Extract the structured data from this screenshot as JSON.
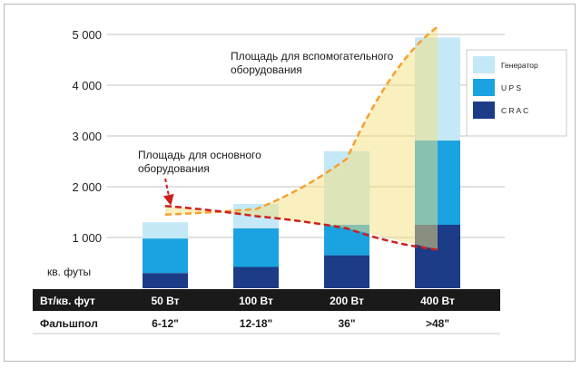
{
  "chart_data": {
    "type": "bar",
    "stacked": true,
    "ylim": [
      0,
      5000
    ],
    "yticks": [
      1000,
      2000,
      3000,
      4000,
      5000
    ],
    "ytick_labels": [
      "1 000",
      "2 000",
      "3 000",
      "4 000",
      "5 000"
    ],
    "ylabel": "кв. футы",
    "categories": [
      "50 Вт",
      "100 Вт",
      "200 Вт",
      "400 Вт"
    ],
    "series": [
      {
        "name": "C R A C",
        "color": "#1c3c88",
        "values": [
          300,
          420,
          650,
          1250
        ]
      },
      {
        "name": "U P S",
        "color": "#1aa3e0",
        "values": [
          680,
          760,
          600,
          1660
        ]
      },
      {
        "name": "Генератор",
        "color": "#c4e8f6",
        "values": [
          320,
          480,
          1450,
          2030
        ]
      }
    ],
    "legend_position": "top-right",
    "grid": true,
    "annotations": {
      "auxiliary_area": {
        "label_line1": "Площадь для вспомогательного",
        "label_line2": "оборудования",
        "color": "#f5a030"
      },
      "primary_area": {
        "label_line1": "Площадь для основного",
        "label_line2": "оборудования",
        "color": "#cc1f1f"
      }
    },
    "dashed_lines": {
      "upper": {
        "x": [
          0,
          1,
          2,
          3
        ],
        "y": [
          1450,
          1560,
          2550,
          5150
        ]
      },
      "lower": {
        "x": [
          0,
          1,
          2,
          3
        ],
        "y": [
          1620,
          1420,
          1180,
          760
        ]
      }
    },
    "table": {
      "row1_header": "Вт/кв. фут",
      "row2_header": "Фальшпол",
      "row2_values": [
        "6-12\"",
        "12-18\"",
        "36\"",
        ">48\""
      ]
    }
  }
}
